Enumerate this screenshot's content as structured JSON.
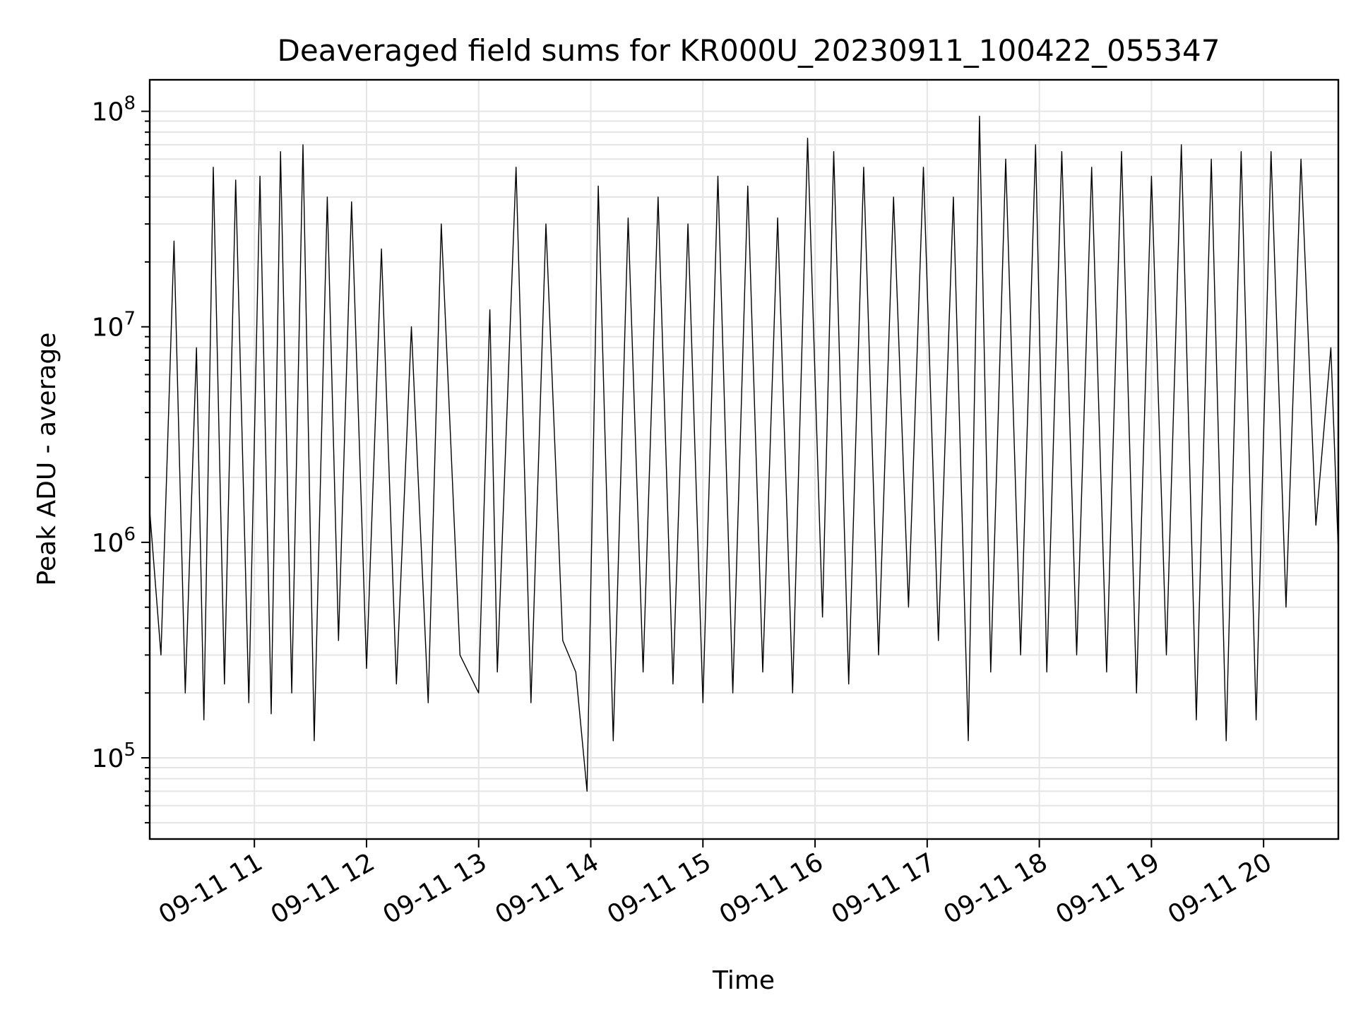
{
  "chart_data": {
    "type": "line",
    "title": "Deaveraged field sums for KR000U_20230911_100422_055347",
    "xlabel": "Time",
    "ylabel": "Peak ADU - average",
    "yscale": "log",
    "xlim": [
      "09-11 10:04",
      "09-11 20:40"
    ],
    "ylim": [
      42000,
      140000000
    ],
    "grid": true,
    "line_color": "#000000",
    "x_ticks": [
      "09-11 11",
      "09-11 12",
      "09-11 13",
      "09-11 14",
      "09-11 15",
      "09-11 16",
      "09-11 17",
      "09-11 18",
      "09-11 19",
      "09-11 20"
    ],
    "y_ticks": [
      {
        "value": 100000,
        "base": "10",
        "exp": "5"
      },
      {
        "value": 1000000,
        "base": "10",
        "exp": "6"
      },
      {
        "value": 10000000,
        "base": "10",
        "exp": "7"
      },
      {
        "value": 100000000,
        "base": "10",
        "exp": "8"
      }
    ],
    "series": [
      {
        "x": [
          "09-11 10:04",
          "09-11 10:10",
          "09-11 10:17",
          "09-11 10:23",
          "09-11 10:29",
          "09-11 10:33",
          "09-11 10:38",
          "09-11 10:44",
          "09-11 10:50",
          "09-11 10:57",
          "09-11 11:03",
          "09-11 11:09",
          "09-11 11:14",
          "09-11 11:20",
          "09-11 11:26",
          "09-11 11:32",
          "09-11 11:39",
          "09-11 11:45",
          "09-11 11:52",
          "09-11 12:00",
          "09-11 12:08",
          "09-11 12:16",
          "09-11 12:24",
          "09-11 12:33",
          "09-11 12:40",
          "09-11 12:50",
          "09-11 13:00",
          "09-11 13:06",
          "09-11 13:10",
          "09-11 13:20",
          "09-11 13:28",
          "09-11 13:36",
          "09-11 13:45",
          "09-11 13:52",
          "09-11 13:58",
          "09-11 14:04",
          "09-11 14:12",
          "09-11 14:20",
          "09-11 14:28",
          "09-11 14:36",
          "09-11 14:44",
          "09-11 14:52",
          "09-11 15:00",
          "09-11 15:08",
          "09-11 15:16",
          "09-11 15:24",
          "09-11 15:32",
          "09-11 15:40",
          "09-11 15:48",
          "09-11 15:56",
          "09-11 16:04",
          "09-11 16:10",
          "09-11 16:18",
          "09-11 16:26",
          "09-11 16:34",
          "09-11 16:42",
          "09-11 16:50",
          "09-11 16:58",
          "09-11 17:06",
          "09-11 17:14",
          "09-11 17:22",
          "09-11 17:28",
          "09-11 17:34",
          "09-11 17:42",
          "09-11 17:50",
          "09-11 17:58",
          "09-11 18:04",
          "09-11 18:12",
          "09-11 18:20",
          "09-11 18:28",
          "09-11 18:36",
          "09-11 18:44",
          "09-11 18:52",
          "09-11 19:00",
          "09-11 19:08",
          "09-11 19:16",
          "09-11 19:24",
          "09-11 19:32",
          "09-11 19:40",
          "09-11 19:48",
          "09-11 19:56",
          "09-11 20:04",
          "09-11 20:12",
          "09-11 20:20",
          "09-11 20:28",
          "09-11 20:36",
          "09-11 20:40"
        ],
        "y": [
          1400000,
          300000,
          25000000,
          200000,
          8000000,
          150000,
          55000000,
          220000,
          48000000,
          180000,
          50000000,
          160000,
          65000000,
          200000,
          70000000,
          120000,
          40000000,
          350000,
          38000000,
          260000,
          23000000,
          220000,
          10000000,
          180000,
          30000000,
          300000,
          200000,
          12000000,
          250000,
          55000000,
          180000,
          30000000,
          350000,
          250000,
          70000,
          45000000,
          120000,
          32000000,
          250000,
          40000000,
          220000,
          30000000,
          180000,
          50000000,
          200000,
          45000000,
          250000,
          32000000,
          200000,
          75000000,
          450000,
          65000000,
          220000,
          55000000,
          300000,
          40000000,
          500000,
          55000000,
          350000,
          40000000,
          120000,
          95000000,
          250000,
          60000000,
          300000,
          70000000,
          250000,
          65000000,
          300000,
          55000000,
          250000,
          65000000,
          200000,
          50000000,
          300000,
          70000000,
          150000,
          60000000,
          120000,
          65000000,
          150000,
          65000000,
          500000,
          60000000,
          1200000,
          8000000,
          900000
        ]
      }
    ]
  }
}
